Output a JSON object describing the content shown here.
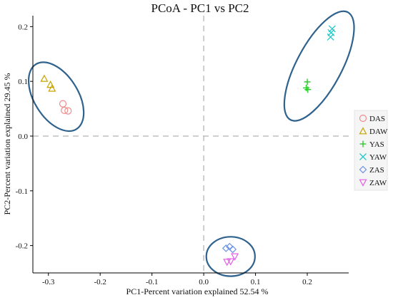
{
  "chart_data": {
    "type": "scatter",
    "title": "PCoA - PC1 vs PC2",
    "xlabel": "PC1-Percent variation explained 52.54 %",
    "ylabel": "PC2-Percent variation explained 29.45 %",
    "xlim": [
      -0.33,
      0.28
    ],
    "ylim": [
      -0.25,
      0.22
    ],
    "x_ticks": [
      -0.3,
      -0.2,
      -0.1,
      0.0,
      0.1,
      0.2
    ],
    "x_tick_labels": [
      "-0.3",
      "-0.2",
      "-0.1",
      "0.0",
      "0.1",
      "0.2"
    ],
    "y_ticks": [
      -0.2,
      -0.1,
      0.0,
      0.1,
      0.2
    ],
    "y_tick_labels": [
      "-0.2",
      "-0.1",
      "0.0",
      "0.1",
      "0.2"
    ],
    "grid": false,
    "zero_lines": true,
    "legend_position": "right",
    "series": [
      {
        "name": "DAS",
        "marker": "circle",
        "color": "#f08c8c",
        "points": [
          [
            -0.272,
            0.059
          ],
          [
            -0.269,
            0.047
          ],
          [
            -0.262,
            0.046
          ]
        ]
      },
      {
        "name": "DAW",
        "marker": "triangle-up",
        "color": "#c7a400",
        "points": [
          [
            -0.308,
            0.105
          ],
          [
            -0.296,
            0.094
          ],
          [
            -0.293,
            0.087
          ]
        ]
      },
      {
        "name": "YAS",
        "marker": "plus",
        "color": "#22c422",
        "points": [
          [
            0.2,
            0.099
          ],
          [
            0.198,
            0.088
          ],
          [
            0.201,
            0.085
          ]
        ]
      },
      {
        "name": "YAW",
        "marker": "x",
        "color": "#1fc7c7",
        "points": [
          [
            0.248,
            0.196
          ],
          [
            0.246,
            0.189
          ],
          [
            0.245,
            0.181
          ]
        ]
      },
      {
        "name": "ZAS",
        "marker": "diamond",
        "color": "#6b92e6",
        "points": [
          [
            0.043,
            -0.205
          ],
          [
            0.05,
            -0.202
          ],
          [
            0.056,
            -0.207
          ]
        ]
      },
      {
        "name": "ZAW",
        "marker": "triangle-down",
        "color": "#e55ce5",
        "points": [
          [
            0.045,
            -0.23
          ],
          [
            0.052,
            -0.229
          ],
          [
            0.06,
            -0.22
          ]
        ]
      }
    ],
    "ellipses": [
      {
        "cx": -0.285,
        "cy": 0.072,
        "rx": 0.074,
        "ry": 0.04,
        "angle": 58,
        "color": "#2f628d"
      },
      {
        "cx": 0.223,
        "cy": 0.128,
        "rx": 0.118,
        "ry": 0.041,
        "angle": 118,
        "color": "#2f628d"
      },
      {
        "cx": 0.052,
        "cy": -0.22,
        "rx": 0.047,
        "ry": 0.036,
        "angle": 0,
        "color": "#2f628d"
      }
    ],
    "colors": {
      "axis": "#000000",
      "zero_line": "#bfbfbf",
      "ellipse": "#2f628d"
    }
  }
}
